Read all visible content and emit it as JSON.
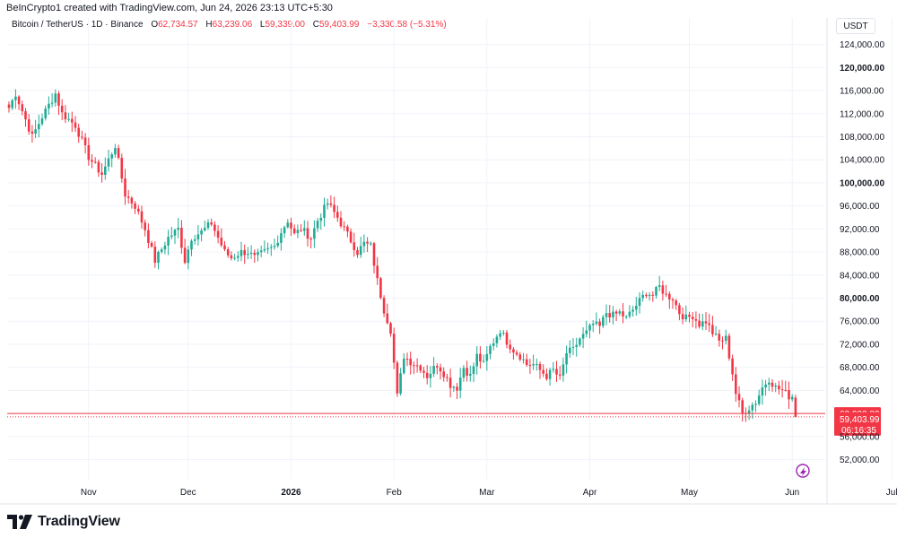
{
  "header": {
    "credit": "BeInCrypto1 created with TradingView.com, Jun 24, 2026 23:13 UTC+5:30"
  },
  "symbol_info": {
    "title": "Bitcoin / TetherUS · 1D · Binance",
    "open_label": "O",
    "open_value": "62,734.57",
    "high_label": "H",
    "high_value": "63,239.06",
    "low_label": "L",
    "low_value": "59,339.00",
    "close_label": "C",
    "close_value": "59,403.99",
    "change": "−3,330.58 (−5.31%)"
  },
  "currency_button": "USDT",
  "footer": {
    "brand": "TradingView"
  },
  "colors": {
    "up": "#22ab94",
    "down": "#f23645",
    "grid": "#f0f3fa",
    "axis_text": "#131722",
    "price_line": "#f23645",
    "accent_icon": "#9c27b0"
  },
  "chart_data": {
    "type": "candlestick",
    "ylim": [
      48500,
      125500
    ],
    "y_ticks": [
      {
        "value": 124000,
        "label": "124,000.00",
        "bold": false
      },
      {
        "value": 120000,
        "label": "120,000.00",
        "bold": true
      },
      {
        "value": 116000,
        "label": "116,000.00",
        "bold": false
      },
      {
        "value": 112000,
        "label": "112,000.00",
        "bold": false
      },
      {
        "value": 108000,
        "label": "108,000.00",
        "bold": false
      },
      {
        "value": 104000,
        "label": "104,000.00",
        "bold": false
      },
      {
        "value": 100000,
        "label": "100,000.00",
        "bold": true
      },
      {
        "value": 96000,
        "label": "96,000.00",
        "bold": false
      },
      {
        "value": 92000,
        "label": "92,000.00",
        "bold": false
      },
      {
        "value": 88000,
        "label": "88,000.00",
        "bold": false
      },
      {
        "value": 84000,
        "label": "84,000.00",
        "bold": false
      },
      {
        "value": 80000,
        "label": "80,000.00",
        "bold": true
      },
      {
        "value": 76000,
        "label": "76,000.00",
        "bold": false
      },
      {
        "value": 72000,
        "label": "72,000.00",
        "bold": false
      },
      {
        "value": 68000,
        "label": "68,000.00",
        "bold": false
      },
      {
        "value": 64000,
        "label": "64,000.00",
        "bold": false
      },
      {
        "value": 56000,
        "label": "56,000.00",
        "bold": false
      },
      {
        "value": 52000,
        "label": "52,000.00",
        "bold": false
      }
    ],
    "x_ticks": [
      {
        "day": 24,
        "label": "Nov",
        "bold": false
      },
      {
        "day": 54,
        "label": "Dec",
        "bold": false
      },
      {
        "day": 85,
        "label": "2026",
        "bold": true
      },
      {
        "day": 116,
        "label": "Feb",
        "bold": false
      },
      {
        "day": 144,
        "label": "Mar",
        "bold": false
      },
      {
        "day": 175,
        "label": "Apr",
        "bold": false
      },
      {
        "day": 205,
        "label": "May",
        "bold": false
      },
      {
        "day": 236,
        "label": "Jun",
        "bold": false
      },
      {
        "day": 266,
        "label": "Jul",
        "bold": false
      }
    ],
    "key_levels": [
      {
        "name": "level-60000",
        "value": 60000,
        "label": "60,000.00"
      },
      {
        "name": "last-price",
        "value": 59403.99,
        "label": "59,403.99",
        "countdown": "06:16:35"
      }
    ],
    "anchors": [
      [
        0,
        113000
      ],
      [
        2,
        115500
      ],
      [
        7,
        108000
      ],
      [
        10,
        111500
      ],
      [
        14,
        115500
      ],
      [
        16,
        112000
      ],
      [
        20,
        110000
      ],
      [
        24,
        104500
      ],
      [
        28,
        101500
      ],
      [
        32,
        106500
      ],
      [
        35,
        98000
      ],
      [
        38,
        96000
      ],
      [
        41,
        92000
      ],
      [
        44,
        86500
      ],
      [
        46,
        88500
      ],
      [
        48,
        90500
      ],
      [
        51,
        92000
      ],
      [
        53,
        86500
      ],
      [
        55,
        90500
      ],
      [
        58,
        91500
      ],
      [
        61,
        93000
      ],
      [
        63,
        90500
      ],
      [
        65,
        88000
      ],
      [
        67,
        87000
      ],
      [
        70,
        88000
      ],
      [
        72,
        88000
      ],
      [
        74,
        87000
      ],
      [
        77,
        88000
      ],
      [
        80,
        89000
      ],
      [
        82,
        91500
      ],
      [
        84,
        93500
      ],
      [
        86,
        91000
      ],
      [
        88,
        92000
      ],
      [
        91,
        90500
      ],
      [
        93,
        93500
      ],
      [
        96,
        96500
      ],
      [
        99,
        94000
      ],
      [
        101,
        92000
      ],
      [
        103,
        90000
      ],
      [
        105,
        88000
      ],
      [
        107,
        89500
      ],
      [
        109,
        89000
      ],
      [
        111,
        83000
      ],
      [
        113,
        78000
      ],
      [
        115,
        74500
      ],
      [
        117,
        63000
      ],
      [
        119,
        70000
      ],
      [
        121,
        69000
      ],
      [
        124,
        68000
      ],
      [
        126,
        66500
      ],
      [
        129,
        68500
      ],
      [
        131,
        67000
      ],
      [
        133,
        65000
      ],
      [
        135,
        64500
      ],
      [
        137,
        68000
      ],
      [
        139,
        66500
      ],
      [
        141,
        70000
      ],
      [
        143,
        68500
      ],
      [
        145,
        71500
      ],
      [
        148,
        74500
      ],
      [
        150,
        72500
      ],
      [
        152,
        71000
      ],
      [
        154,
        70000
      ],
      [
        156,
        68500
      ],
      [
        158,
        68500
      ],
      [
        160,
        67500
      ],
      [
        162,
        66500
      ],
      [
        164,
        67500
      ],
      [
        166,
        66000
      ],
      [
        168,
        70500
      ],
      [
        170,
        71000
      ],
      [
        172,
        73000
      ],
      [
        174,
        74000
      ],
      [
        176,
        75500
      ],
      [
        178,
        75000
      ],
      [
        180,
        77500
      ],
      [
        182,
        77000
      ],
      [
        184,
        77500
      ],
      [
        186,
        76500
      ],
      [
        188,
        78000
      ],
      [
        190,
        79500
      ],
      [
        192,
        81000
      ],
      [
        194,
        80500
      ],
      [
        196,
        82000
      ],
      [
        198,
        80500
      ],
      [
        200,
        80000
      ],
      [
        202,
        77500
      ],
      [
        204,
        76500
      ],
      [
        206,
        77000
      ],
      [
        208,
        75500
      ],
      [
        210,
        76000
      ],
      [
        212,
        74000
      ],
      [
        214,
        72500
      ],
      [
        216,
        73000
      ],
      [
        218,
        67000
      ],
      [
        219,
        63500
      ],
      [
        221,
        60000
      ],
      [
        223,
        61000
      ],
      [
        225,
        62000
      ],
      [
        227,
        64500
      ],
      [
        229,
        66000
      ],
      [
        231,
        64500
      ],
      [
        233,
        64000
      ],
      [
        235,
        63000
      ],
      [
        236,
        63000
      ],
      [
        237,
        59404
      ]
    ]
  }
}
